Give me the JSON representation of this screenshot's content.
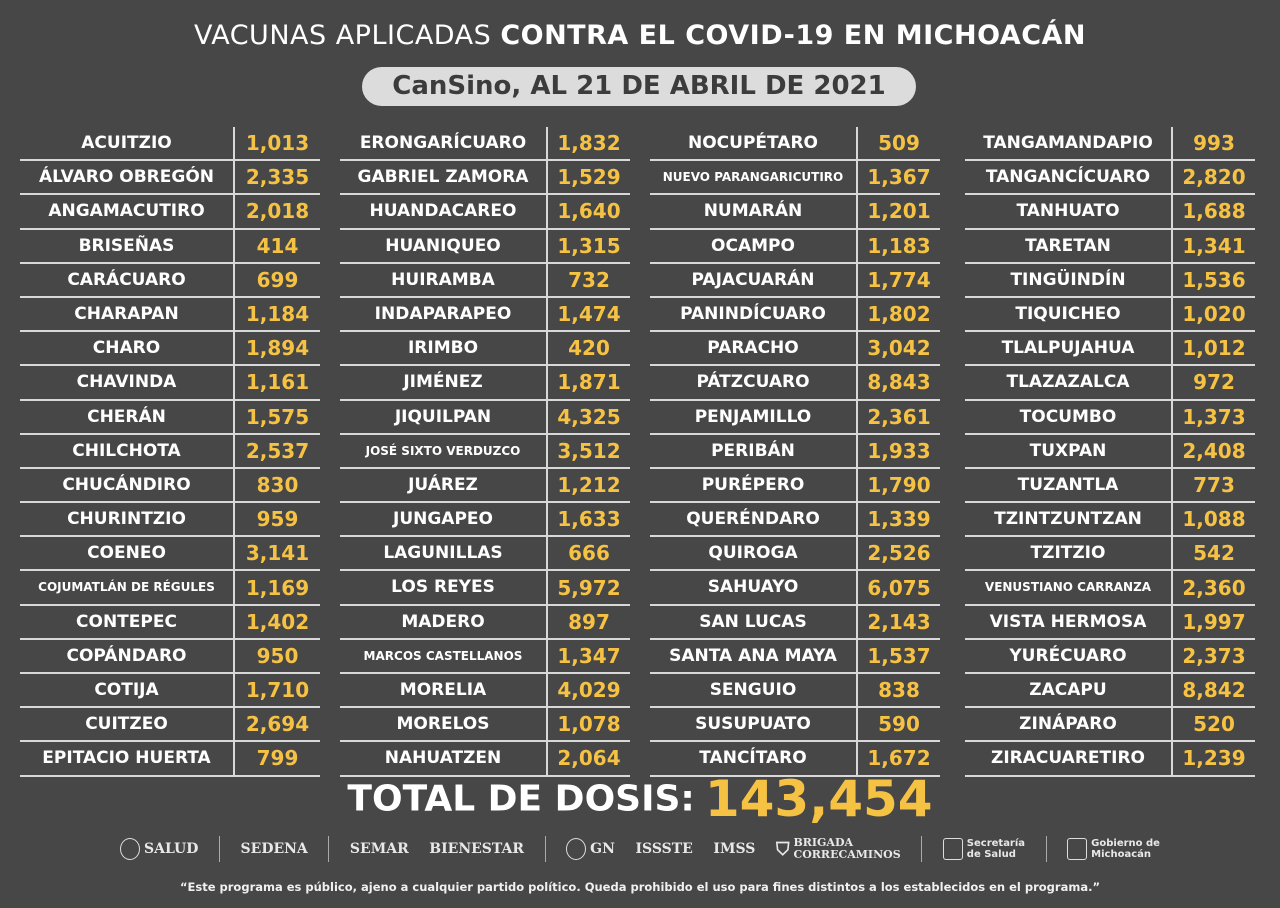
{
  "header": {
    "title_light": "VACUNAS APLICADAS ",
    "title_bold": "CONTRA EL COVID-19 EN MICHOACÁN",
    "subtitle": "CanSino, AL 21 DE ABRIL DE 2021"
  },
  "colors": {
    "background": "#474747",
    "value": "#f6c244",
    "text": "#ffffff",
    "pill": "#dcdcdc"
  },
  "columns": [
    [
      {
        "name": "ACUITZIO",
        "value": "1,013"
      },
      {
        "name": "ÁLVARO OBREGÓN",
        "value": "2,335"
      },
      {
        "name": "ANGAMACUTIRO",
        "value": "2,018"
      },
      {
        "name": "BRISEÑAS",
        "value": "414"
      },
      {
        "name": "CARÁCUARO",
        "value": "699"
      },
      {
        "name": "CHARAPAN",
        "value": "1,184"
      },
      {
        "name": "CHARO",
        "value": "1,894"
      },
      {
        "name": "CHAVINDA",
        "value": "1,161"
      },
      {
        "name": "CHERÁN",
        "value": "1,575"
      },
      {
        "name": "CHILCHOTA",
        "value": "2,537"
      },
      {
        "name": "CHUCÁNDIRO",
        "value": "830"
      },
      {
        "name": "CHURINTZIO",
        "value": "959"
      },
      {
        "name": "COENEO",
        "value": "3,141"
      },
      {
        "name": "COJUMATLÁN DE RÉGULES",
        "value": "1,169"
      },
      {
        "name": "CONTEPEC",
        "value": "1,402"
      },
      {
        "name": "COPÁNDARO",
        "value": "950"
      },
      {
        "name": "COTIJA",
        "value": "1,710"
      },
      {
        "name": "CUITZEO",
        "value": "2,694"
      },
      {
        "name": "EPITACIO HUERTA",
        "value": "799"
      }
    ],
    [
      {
        "name": "ERONGARÍCUARO",
        "value": "1,832"
      },
      {
        "name": "GABRIEL ZAMORA",
        "value": "1,529"
      },
      {
        "name": "HUANDACAREO",
        "value": "1,640"
      },
      {
        "name": "HUANIQUEO",
        "value": "1,315"
      },
      {
        "name": "HUIRAMBA",
        "value": "732"
      },
      {
        "name": "INDAPARAPEO",
        "value": "1,474"
      },
      {
        "name": "IRIMBO",
        "value": "420"
      },
      {
        "name": "JIMÉNEZ",
        "value": "1,871"
      },
      {
        "name": "JIQUILPAN",
        "value": "4,325"
      },
      {
        "name": "JOSÉ SIXTO VERDUZCO",
        "value": "3,512"
      },
      {
        "name": "JUÁREZ",
        "value": "1,212"
      },
      {
        "name": "JUNGAPEO",
        "value": "1,633"
      },
      {
        "name": "LAGUNILLAS",
        "value": "666"
      },
      {
        "name": "LOS REYES",
        "value": "5,972"
      },
      {
        "name": "MADERO",
        "value": "897"
      },
      {
        "name": "MARCOS CASTELLANOS",
        "value": "1,347"
      },
      {
        "name": "MORELIA",
        "value": "4,029"
      },
      {
        "name": "MORELOS",
        "value": "1,078"
      },
      {
        "name": "NAHUATZEN",
        "value": "2,064"
      }
    ],
    [
      {
        "name": "NOCUPÉTARO",
        "value": "509"
      },
      {
        "name": "NUEVO PARANGARICUTIRO",
        "value": "1,367"
      },
      {
        "name": "NUMARÁN",
        "value": "1,201"
      },
      {
        "name": "OCAMPO",
        "value": "1,183"
      },
      {
        "name": "PAJACUARÁN",
        "value": "1,774"
      },
      {
        "name": "PANINDÍCUARO",
        "value": "1,802"
      },
      {
        "name": "PARACHO",
        "value": "3,042"
      },
      {
        "name": "PÁTZCUARO",
        "value": "8,843"
      },
      {
        "name": "PENJAMILLO",
        "value": "2,361"
      },
      {
        "name": "PERIBÁN",
        "value": "1,933"
      },
      {
        "name": "PURÉPERO",
        "value": "1,790"
      },
      {
        "name": "QUERÉNDARO",
        "value": "1,339"
      },
      {
        "name": "QUIROGA",
        "value": "2,526"
      },
      {
        "name": "SAHUAYO",
        "value": "6,075"
      },
      {
        "name": "SAN LUCAS",
        "value": "2,143"
      },
      {
        "name": "SANTA ANA MAYA",
        "value": "1,537"
      },
      {
        "name": "SENGUIO",
        "value": "838"
      },
      {
        "name": "SUSUPUATO",
        "value": "590"
      },
      {
        "name": "TANCÍTARO",
        "value": "1,672"
      }
    ],
    [
      {
        "name": "TANGAMANDAPIO",
        "value": "993"
      },
      {
        "name": "TANGANCÍCUARO",
        "value": "2,820"
      },
      {
        "name": "TANHUATO",
        "value": "1,688"
      },
      {
        "name": "TARETAN",
        "value": "1,341"
      },
      {
        "name": "TINGÜINDÍN",
        "value": "1,536"
      },
      {
        "name": "TIQUICHEO",
        "value": "1,020"
      },
      {
        "name": "TLALPUJAHUA",
        "value": "1,012"
      },
      {
        "name": "TLAZAZALCA",
        "value": "972"
      },
      {
        "name": "TOCUMBO",
        "value": "1,373"
      },
      {
        "name": "TUXPAN",
        "value": "2,408"
      },
      {
        "name": "TUZANTLA",
        "value": "773"
      },
      {
        "name": "TZINTZUNTZAN",
        "value": "1,088"
      },
      {
        "name": "TZITZIO",
        "value": "542"
      },
      {
        "name": "VENUSTIANO CARRANZA",
        "value": "2,360"
      },
      {
        "name": "VISTA HERMOSA",
        "value": "1,997"
      },
      {
        "name": "YURÉCUARO",
        "value": "2,373"
      },
      {
        "name": "ZACAPU",
        "value": "8,842"
      },
      {
        "name": "ZINÁPARO",
        "value": "520"
      },
      {
        "name": "ZIRACUARETIRO",
        "value": "1,239"
      }
    ]
  ],
  "total": {
    "label": "TOTAL DE DOSIS:",
    "value": "143,454"
  },
  "logos": {
    "salud": "SALUD",
    "sedena": "SEDENA",
    "semar": "SEMAR",
    "bienestar": "BIENESTAR",
    "gn": "GN",
    "issste": "ISSSTE",
    "imss": "IMSS",
    "brigada": "BRIGADA",
    "correcaminos": "CORRECAMINOS",
    "secretaria": "Secretaría",
    "de_salud": "de Salud",
    "gobierno": "Gobierno de",
    "michoacan": "Michoacán"
  },
  "disclaimer": "“Este programa es público, ajeno a cualquier partido político. Queda prohibido el uso para fines distintos a los establecidos en el programa.”"
}
